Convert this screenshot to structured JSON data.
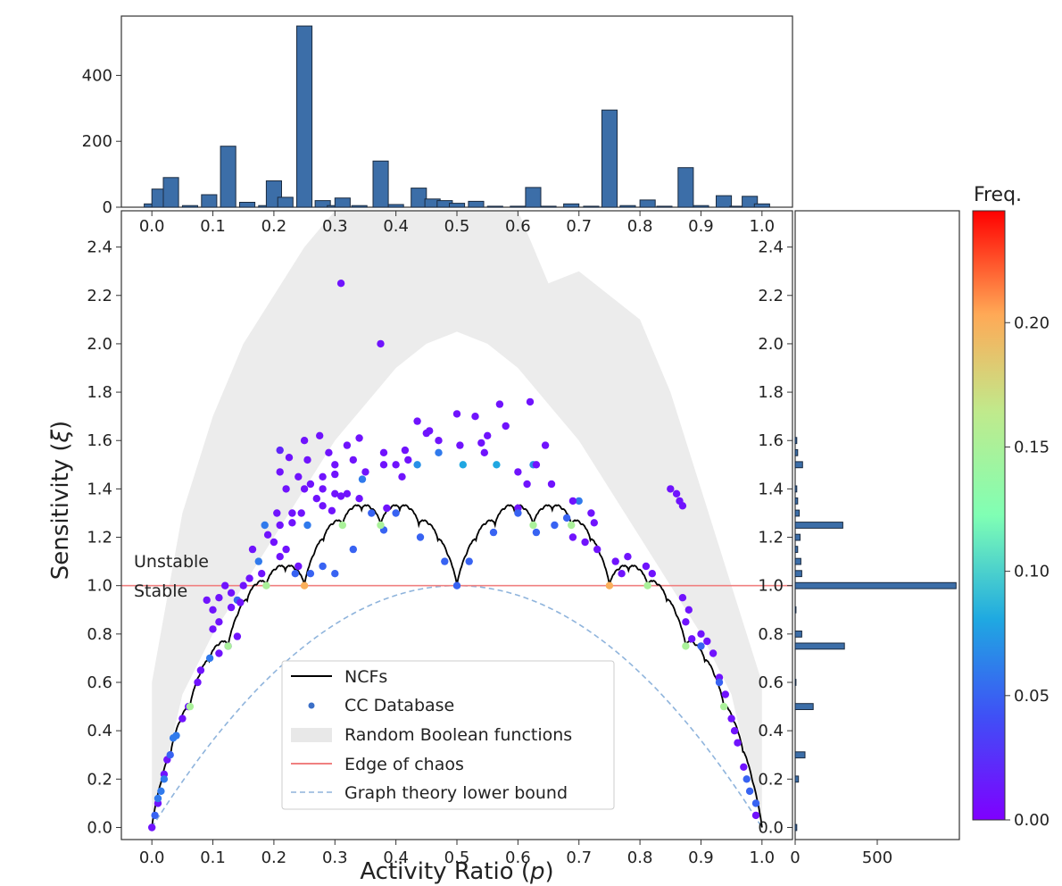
{
  "chart_data": [
    {
      "type": "scatter",
      "xlabel": "Activity Ratio (p)",
      "xlabel_main": "Activity Ratio (",
      "xlabel_var": "p",
      "xlabel_close": ")",
      "ylabel": "Sensitivity (ξ)",
      "ylabel_main": "Sensitivity (",
      "ylabel_var": "ξ",
      "ylabel_close": ")",
      "xlim": [
        -0.05,
        1.05
      ],
      "ylim": [
        -0.05,
        2.55
      ],
      "xticks": [
        "0.0",
        "0.1",
        "0.2",
        "0.3",
        "0.4",
        "0.5",
        "0.6",
        "0.7",
        "0.8",
        "0.9",
        "1.0"
      ],
      "yticks": [
        "0.0",
        "0.2",
        "0.4",
        "0.6",
        "0.8",
        "1.0",
        "1.2",
        "1.4",
        "1.6",
        "1.8",
        "2.0",
        "2.2",
        "2.4"
      ],
      "annotations": [
        "Unstable",
        "Stable"
      ],
      "legend": {
        "placement": "lower-center",
        "entries": [
          "NCFs",
          "CC Database",
          "Random Boolean functions",
          "Edge of chaos",
          "Graph theory lower bound"
        ]
      },
      "colors": {
        "ncf": "#000000",
        "edge": "#f08080",
        "lower_bound": "#8fb4dc",
        "random_fill": "#ececec"
      },
      "edge_of_chaos": 1.0,
      "random_boolean_band": {
        "p": [
          0.0,
          0.05,
          0.1,
          0.15,
          0.2,
          0.25,
          0.3,
          0.35,
          0.4,
          0.45,
          0.5,
          0.55,
          0.6,
          0.65,
          0.7,
          0.75,
          0.8,
          0.85,
          0.9,
          0.95,
          1.0
        ],
        "lower": [
          0.0,
          0.55,
          0.8,
          1.0,
          1.2,
          1.4,
          1.6,
          1.75,
          1.9,
          2.0,
          2.05,
          2.0,
          1.9,
          1.75,
          1.6,
          1.4,
          1.2,
          1.0,
          0.8,
          0.55,
          0.0
        ],
        "upper": [
          0.6,
          1.3,
          1.7,
          2.0,
          2.2,
          2.4,
          2.55,
          2.55,
          2.55,
          2.55,
          2.55,
          2.55,
          2.55,
          2.25,
          2.3,
          2.2,
          2.1,
          1.8,
          1.4,
          1.0,
          0.6
        ]
      },
      "points": [
        [
          0.31,
          2.25,
          0.01
        ],
        [
          0.375,
          2.0,
          0.01
        ],
        [
          0.62,
          1.76,
          0.01
        ],
        [
          0.57,
          1.75,
          0.01
        ],
        [
          0.5,
          1.71,
          0.01
        ],
        [
          0.53,
          1.7,
          0.01
        ],
        [
          0.435,
          1.68,
          0.01
        ],
        [
          0.58,
          1.66,
          0.01
        ],
        [
          0.45,
          1.63,
          0.01
        ],
        [
          0.455,
          1.64,
          0.01
        ],
        [
          0.55,
          1.62,
          0.01
        ],
        [
          0.275,
          1.62,
          0.01
        ],
        [
          0.34,
          1.61,
          0.01
        ],
        [
          0.25,
          1.6,
          0.01
        ],
        [
          0.47,
          1.6,
          0.01
        ],
        [
          0.54,
          1.59,
          0.01
        ],
        [
          0.505,
          1.58,
          0.01
        ],
        [
          0.21,
          1.56,
          0.02
        ],
        [
          0.32,
          1.58,
          0.01
        ],
        [
          0.415,
          1.56,
          0.01
        ],
        [
          0.38,
          1.55,
          0.01
        ],
        [
          0.545,
          1.55,
          0.01
        ],
        [
          0.645,
          1.58,
          0.01
        ],
        [
          0.29,
          1.55,
          0.01
        ],
        [
          0.225,
          1.53,
          0.01
        ],
        [
          0.255,
          1.52,
          0.01
        ],
        [
          0.3,
          1.5,
          0.01
        ],
        [
          0.33,
          1.52,
          0.01
        ],
        [
          0.38,
          1.5,
          0.01
        ],
        [
          0.4,
          1.5,
          0.01
        ],
        [
          0.42,
          1.52,
          0.01
        ],
        [
          0.47,
          1.55,
          0.06
        ],
        [
          0.435,
          1.5,
          0.07
        ],
        [
          0.51,
          1.5,
          0.08
        ],
        [
          0.565,
          1.5,
          0.08
        ],
        [
          0.625,
          1.5,
          0.07
        ],
        [
          0.6,
          1.47,
          0.01
        ],
        [
          0.63,
          1.5,
          0.01
        ],
        [
          0.21,
          1.47,
          0.01
        ],
        [
          0.24,
          1.45,
          0.01
        ],
        [
          0.28,
          1.45,
          0.01
        ],
        [
          0.3,
          1.46,
          0.01
        ],
        [
          0.345,
          1.44,
          0.06
        ],
        [
          0.35,
          1.47,
          0.01
        ],
        [
          0.41,
          1.45,
          0.01
        ],
        [
          0.615,
          1.42,
          0.01
        ],
        [
          0.655,
          1.42,
          0.01
        ],
        [
          0.28,
          1.4,
          0.01
        ],
        [
          0.25,
          1.4,
          0.01
        ],
        [
          0.22,
          1.4,
          0.01
        ],
        [
          0.26,
          1.42,
          0.01
        ],
        [
          0.3,
          1.38,
          0.01
        ],
        [
          0.31,
          1.37,
          0.01
        ],
        [
          0.32,
          1.38,
          0.01
        ],
        [
          0.27,
          1.36,
          0.01
        ],
        [
          0.34,
          1.36,
          0.01
        ],
        [
          0.85,
          1.4,
          0.01
        ],
        [
          0.86,
          1.38,
          0.01
        ],
        [
          0.865,
          1.35,
          0.01
        ],
        [
          0.87,
          1.33,
          0.01
        ],
        [
          0.7,
          1.35,
          0.06
        ],
        [
          0.69,
          1.35,
          0.01
        ],
        [
          0.72,
          1.3,
          0.01
        ],
        [
          0.725,
          1.26,
          0.01
        ],
        [
          0.23,
          1.3,
          0.01
        ],
        [
          0.245,
          1.3,
          0.01
        ],
        [
          0.205,
          1.3,
          0.01
        ],
        [
          0.28,
          1.33,
          0.01
        ],
        [
          0.295,
          1.31,
          0.01
        ],
        [
          0.385,
          1.32,
          0.01
        ],
        [
          0.6,
          1.32,
          0.01
        ],
        [
          0.185,
          1.25,
          0.06
        ],
        [
          0.21,
          1.25,
          0.01
        ],
        [
          0.23,
          1.26,
          0.01
        ],
        [
          0.255,
          1.25,
          0.06
        ],
        [
          0.19,
          1.21,
          0.01
        ],
        [
          0.2,
          1.18,
          0.01
        ],
        [
          0.22,
          1.15,
          0.01
        ],
        [
          0.21,
          1.12,
          0.01
        ],
        [
          0.165,
          1.15,
          0.01
        ],
        [
          0.175,
          1.1,
          0.06
        ],
        [
          0.24,
          1.08,
          0.01
        ],
        [
          0.18,
          1.05,
          0.01
        ],
        [
          0.16,
          1.03,
          0.01
        ],
        [
          0.15,
          1.0,
          0.01
        ],
        [
          0.12,
          1.0,
          0.01
        ],
        [
          0.13,
          0.97,
          0.01
        ],
        [
          0.11,
          0.95,
          0.01
        ],
        [
          0.09,
          0.94,
          0.01
        ],
        [
          0.14,
          0.94,
          0.05
        ],
        [
          0.145,
          0.93,
          0.01
        ],
        [
          0.1,
          0.9,
          0.01
        ],
        [
          0.13,
          0.91,
          0.01
        ],
        [
          0.11,
          0.85,
          0.01
        ],
        [
          0.1,
          0.82,
          0.01
        ],
        [
          0.81,
          1.08,
          0.01
        ],
        [
          0.82,
          1.05,
          0.01
        ],
        [
          0.77,
          1.05,
          0.01
        ],
        [
          0.76,
          1.1,
          0.01
        ],
        [
          0.78,
          1.12,
          0.01
        ],
        [
          0.73,
          1.15,
          0.01
        ],
        [
          0.71,
          1.18,
          0.01
        ],
        [
          0.69,
          1.2,
          0.01
        ],
        [
          0.87,
          0.95,
          0.01
        ],
        [
          0.88,
          0.9,
          0.01
        ],
        [
          0.9,
          0.8,
          0.01
        ],
        [
          0.91,
          0.77,
          0.01
        ],
        [
          0.92,
          0.72,
          0.01
        ],
        [
          0.93,
          0.62,
          0.01
        ],
        [
          0.94,
          0.55,
          0.01
        ],
        [
          0.95,
          0.45,
          0.01
        ],
        [
          0.96,
          0.35,
          0.01
        ],
        [
          0.97,
          0.25,
          0.01
        ],
        [
          0.98,
          0.15,
          0.05
        ],
        [
          0.99,
          0.05,
          0.01
        ],
        [
          0.0,
          0.0,
          0.01
        ],
        [
          0.005,
          0.05,
          0.05
        ],
        [
          0.01,
          0.1,
          0.01
        ],
        [
          0.015,
          0.15,
          0.06
        ],
        [
          0.02,
          0.22,
          0.01
        ],
        [
          0.025,
          0.28,
          0.01
        ],
        [
          0.03,
          0.3,
          0.05
        ],
        [
          0.035,
          0.37,
          0.06
        ],
        [
          0.05,
          0.45,
          0.01
        ],
        [
          0.06,
          0.5,
          0.01
        ],
        [
          0.075,
          0.6,
          0.01
        ],
        [
          0.08,
          0.65,
          0.01
        ],
        [
          0.095,
          0.7,
          0.06
        ],
        [
          0.11,
          0.72,
          0.01
        ],
        [
          0.125,
          0.75,
          0.01
        ],
        [
          0.14,
          0.79,
          0.01
        ],
        [
          0.02,
          0.2,
          0.06
        ],
        [
          0.01,
          0.12,
          0.06
        ],
        [
          0.04,
          0.38,
          0.06
        ],
        [
          0.99,
          0.1,
          0.05
        ],
        [
          0.975,
          0.2,
          0.05
        ],
        [
          0.955,
          0.4,
          0.01
        ],
        [
          0.93,
          0.6,
          0.05
        ],
        [
          0.9,
          0.75,
          0.05
        ],
        [
          0.885,
          0.78,
          0.01
        ],
        [
          0.875,
          0.85,
          0.01
        ],
        [
          0.68,
          1.28,
          0.05
        ],
        [
          0.66,
          1.25,
          0.05
        ],
        [
          0.63,
          1.22,
          0.05
        ],
        [
          0.6,
          1.3,
          0.05
        ],
        [
          0.56,
          1.22,
          0.05
        ],
        [
          0.52,
          1.1,
          0.05
        ],
        [
          0.48,
          1.1,
          0.05
        ],
        [
          0.44,
          1.2,
          0.05
        ],
        [
          0.4,
          1.3,
          0.05
        ],
        [
          0.38,
          1.23,
          0.05
        ],
        [
          0.36,
          1.3,
          0.05
        ],
        [
          0.33,
          1.15,
          0.05
        ],
        [
          0.3,
          1.05,
          0.05
        ],
        [
          0.28,
          1.08,
          0.05
        ],
        [
          0.26,
          1.05,
          0.05
        ],
        [
          0.235,
          1.05,
          0.05
        ],
        [
          0.125,
          0.75,
          0.15
        ],
        [
          0.25,
          1.0,
          0.2
        ],
        [
          0.375,
          1.25,
          0.15
        ],
        [
          0.625,
          1.25,
          0.15
        ],
        [
          0.75,
          1.0,
          0.2
        ],
        [
          0.875,
          0.75,
          0.15
        ],
        [
          0.0625,
          0.5,
          0.15
        ],
        [
          0.9375,
          0.5,
          0.15
        ],
        [
          0.1875,
          1.0,
          0.15
        ],
        [
          0.8125,
          1.0,
          0.15
        ],
        [
          0.3125,
          1.25,
          0.15
        ],
        [
          0.6875,
          1.25,
          0.15
        ],
        [
          0.5,
          1.0,
          0.05
        ]
      ]
    },
    {
      "type": "bar",
      "role": "top-marginal-histogram",
      "xticks": [
        "0.0",
        "0.1",
        "0.2",
        "0.3",
        "0.4",
        "0.5",
        "0.6",
        "0.7",
        "0.8",
        "0.9",
        "1.0"
      ],
      "yticks": [
        "0",
        "200",
        "400"
      ],
      "ylim": [
        0,
        580
      ],
      "bin_width": 0.025,
      "bins": [
        [
          0.0,
          10
        ],
        [
          0.0125,
          55
        ],
        [
          0.0313,
          90
        ],
        [
          0.0625,
          5
        ],
        [
          0.0938,
          38
        ],
        [
          0.125,
          185
        ],
        [
          0.1563,
          15
        ],
        [
          0.1875,
          5
        ],
        [
          0.2,
          80
        ],
        [
          0.2188,
          30
        ],
        [
          0.25,
          550
        ],
        [
          0.28,
          20
        ],
        [
          0.3,
          5
        ],
        [
          0.3125,
          28
        ],
        [
          0.34,
          5
        ],
        [
          0.375,
          140
        ],
        [
          0.4,
          8
        ],
        [
          0.4375,
          58
        ],
        [
          0.46,
          25
        ],
        [
          0.48,
          20
        ],
        [
          0.5,
          12
        ],
        [
          0.5313,
          18
        ],
        [
          0.5625,
          3
        ],
        [
          0.6,
          3
        ],
        [
          0.625,
          60
        ],
        [
          0.65,
          3
        ],
        [
          0.6875,
          10
        ],
        [
          0.72,
          3
        ],
        [
          0.75,
          295
        ],
        [
          0.78,
          5
        ],
        [
          0.8125,
          22
        ],
        [
          0.84,
          3
        ],
        [
          0.875,
          120
        ],
        [
          0.9,
          5
        ],
        [
          0.9375,
          35
        ],
        [
          0.96,
          3
        ],
        [
          0.98,
          33
        ],
        [
          1.0,
          10
        ]
      ]
    },
    {
      "type": "bar",
      "role": "right-marginal-histogram",
      "orientation": "horizontal",
      "xticks": [
        "0",
        "500"
      ],
      "xlim": [
        0,
        1000
      ],
      "bins": [
        [
          0.0,
          10
        ],
        [
          0.2,
          20
        ],
        [
          0.3,
          60
        ],
        [
          0.5,
          110
        ],
        [
          0.6,
          5
        ],
        [
          0.75,
          300
        ],
        [
          0.8,
          40
        ],
        [
          0.9,
          5
        ],
        [
          1.0,
          980
        ],
        [
          1.05,
          40
        ],
        [
          1.1,
          35
        ],
        [
          1.15,
          15
        ],
        [
          1.2,
          30
        ],
        [
          1.25,
          290
        ],
        [
          1.3,
          25
        ],
        [
          1.35,
          15
        ],
        [
          1.4,
          10
        ],
        [
          1.5,
          45
        ],
        [
          1.55,
          15
        ],
        [
          1.6,
          10
        ]
      ]
    },
    {
      "type": "heatmap",
      "role": "colorbar",
      "title": "Freq.",
      "ticks": [
        "0.00",
        "0.05",
        "0.10",
        "0.15",
        "0.20"
      ],
      "range": [
        0,
        0.245
      ]
    }
  ]
}
